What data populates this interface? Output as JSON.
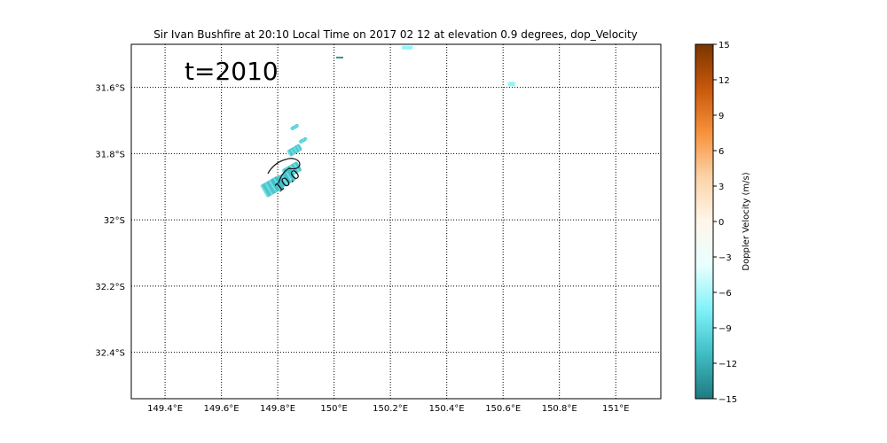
{
  "title": "Sir Ivan Bushfire at 20:10 Local Time on 2017 02 12 at elevation 0.9 degrees, dop_Velocity",
  "time_stamp": "t=2010",
  "contour_label": "10.0",
  "map": {
    "lon_range": [
      149.28,
      151.16
    ],
    "lat_range": [
      -32.54,
      -31.47
    ],
    "lon_ticks": [
      {
        "value": 149.4,
        "label": "149.4°E"
      },
      {
        "value": 149.6,
        "label": "149.6°E"
      },
      {
        "value": 149.8,
        "label": "149.8°E"
      },
      {
        "value": 150.0,
        "label": "150°E"
      },
      {
        "value": 150.2,
        "label": "150.2°E"
      },
      {
        "value": 150.4,
        "label": "150.4°E"
      },
      {
        "value": 150.6,
        "label": "150.6°E"
      },
      {
        "value": 150.8,
        "label": "150.8°E"
      },
      {
        "value": 151.0,
        "label": "151°E"
      }
    ],
    "lat_ticks": [
      {
        "value": -31.6,
        "label": "31.6°S"
      },
      {
        "value": -31.8,
        "label": "31.8°S"
      },
      {
        "value": -32.0,
        "label": "32°S"
      },
      {
        "value": -32.2,
        "label": "32.2°S"
      },
      {
        "value": -32.4,
        "label": "32.4°S"
      }
    ],
    "grid": "dotted"
  },
  "colorbar": {
    "label": "Doppler Velocity (m/s)",
    "range": [
      -15,
      15
    ],
    "ticks": [
      {
        "value": 15,
        "label": "15"
      },
      {
        "value": 12,
        "label": "12"
      },
      {
        "value": 9,
        "label": "9"
      },
      {
        "value": 6,
        "label": "6"
      },
      {
        "value": 3,
        "label": "3"
      },
      {
        "value": 0,
        "label": "0"
      },
      {
        "value": -3,
        "label": "−3"
      },
      {
        "value": -6,
        "label": "−6"
      },
      {
        "value": -9,
        "label": "−9"
      },
      {
        "value": -12,
        "label": "−12"
      },
      {
        "value": -15,
        "label": "−15"
      }
    ],
    "colors": [
      "#1f7a80",
      "#3fbcc4",
      "#7ff2f8",
      "#e8ffff",
      "#fff6ea",
      "#fbd3a8",
      "#f7923c",
      "#c8580c",
      "#7a3500"
    ]
  },
  "echoes": [
    {
      "lon": 150.02,
      "lat": -31.51,
      "v": -15
    },
    {
      "lon": 150.26,
      "lat": -31.48,
      "v": -8
    },
    {
      "lon": 150.63,
      "lat": -31.59,
      "v": -7
    },
    {
      "lon": 149.86,
      "lat": -31.72,
      "v": -12
    },
    {
      "lon": 149.89,
      "lat": -31.76,
      "v": -12
    },
    {
      "lon": 149.86,
      "lat": -31.79,
      "v": -12
    },
    {
      "lon": 149.85,
      "lat": -31.85,
      "v": -13
    },
    {
      "lon": 149.82,
      "lat": -31.88,
      "v": -12
    },
    {
      "lon": 149.78,
      "lat": -31.9,
      "v": -13
    }
  ]
}
